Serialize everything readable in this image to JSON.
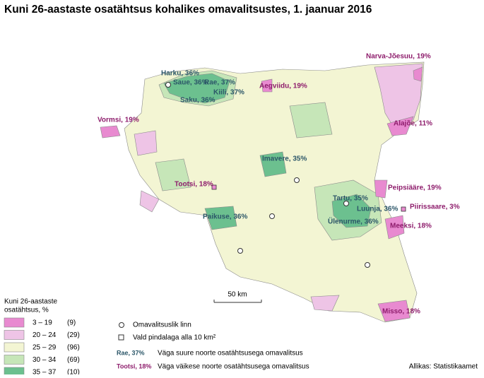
{
  "title": "Kuni 26-aastaste osatähtsus kohalikes omavalitsustes, 1. jaanuar 2016",
  "labels": {
    "narva": "Narva-Jõesuu, 19%",
    "harku": "Harku, 36%",
    "saue": "Saue, 36%",
    "rae": "Rae, 37%",
    "saku": "Saku, 36%",
    "kiili": "Kiili, 37%",
    "aegviidu": "Aegviidu, 19%",
    "vormsi": "Vormsi, 19%",
    "alajoe": "Alajõe, 11%",
    "imavere": "Imavere, 35%",
    "tootsi": "Tootsi, 18%",
    "peipsiaare": "Peipsiääre, 19%",
    "tartu": "Tartu, 35%",
    "luunja": "Luunja, 36%",
    "piirissaare": "Piirissaare, 3%",
    "ulenurme": "Ülenurme, 36%",
    "meeksi": "Meeksi, 18%",
    "paikuse": "Paikuse, 36%",
    "misso": "Misso, 18%"
  },
  "scale": "50 km",
  "legend": {
    "title": [
      "Kuni 26-aastaste",
      "osatähtsus, %"
    ],
    "classes": [
      {
        "range": "3 – 19",
        "count": "(9)"
      },
      {
        "range": "20 – 24",
        "count": "(29)"
      },
      {
        "range": "25 – 29",
        "count": "(96)"
      },
      {
        "range": "30 – 34",
        "count": "(69)"
      },
      {
        "range": "35 – 37",
        "count": "(10)"
      }
    ]
  },
  "symbols": {
    "town": "Omavalitsuslik linn",
    "small": "Vald pindalaga alla 10 km²"
  },
  "key": {
    "high_example": "Rae, 37%",
    "high_text": "Väga suure noorte osatähtsusega omavalitsus",
    "low_example": "Tootsi, 18%",
    "low_text": "Väga väikese noorte osatähtsusega omavalitsus"
  },
  "source": "Allikas: Statistikaamet"
}
